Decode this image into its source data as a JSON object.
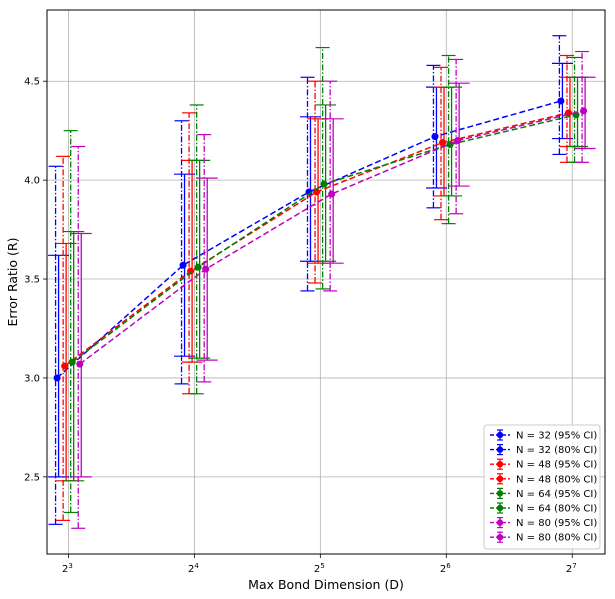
{
  "chart_data": {
    "type": "line",
    "title": "",
    "xlabel": "Max Bond Dimension (D)",
    "ylabel": "Error Ratio (R)",
    "x_scale": "log2",
    "x": [
      8,
      16,
      32,
      64,
      128
    ],
    "x_tick_labels": [
      {
        "base": "2",
        "exp": "3"
      },
      {
        "base": "2",
        "exp": "4"
      },
      {
        "base": "2",
        "exp": "5"
      },
      {
        "base": "2",
        "exp": "6"
      },
      {
        "base": "2",
        "exp": "7"
      }
    ],
    "ylim": [
      2.11,
      4.86
    ],
    "y_ticks": [
      2.5,
      3.0,
      3.5,
      4.0,
      4.5
    ],
    "y_tick_labels": [
      "2.5",
      "3.0",
      "3.5",
      "4.0",
      "4.5"
    ],
    "grid": true,
    "legend_position": "bottom-right",
    "series": [
      {
        "name": "N = 32",
        "color": "#0000ff",
        "values": [
          3.0,
          3.57,
          3.94,
          4.22,
          4.4
        ],
        "ci95_lower": [
          2.26,
          2.97,
          3.44,
          3.86,
          4.13
        ],
        "ci95_upper": [
          4.07,
          4.3,
          4.52,
          4.58,
          4.73
        ],
        "ci80_lower": [
          2.5,
          3.11,
          3.59,
          3.96,
          4.21
        ],
        "ci80_upper": [
          3.62,
          4.03,
          4.32,
          4.47,
          4.59
        ]
      },
      {
        "name": "N = 48",
        "color": "#ff0000",
        "values": [
          3.06,
          3.54,
          3.94,
          4.19,
          4.34
        ],
        "ci95_lower": [
          2.28,
          2.92,
          3.48,
          3.8,
          4.09
        ],
        "ci95_upper": [
          4.12,
          4.34,
          4.5,
          4.57,
          4.63
        ],
        "ci80_lower": [
          2.48,
          3.08,
          3.58,
          3.92,
          4.17
        ],
        "ci80_upper": [
          3.68,
          4.1,
          4.31,
          4.47,
          4.52
        ]
      },
      {
        "name": "N = 64",
        "color": "#008000",
        "values": [
          3.08,
          3.56,
          3.98,
          4.18,
          4.33
        ],
        "ci95_lower": [
          2.32,
          2.92,
          3.45,
          3.78,
          4.09
        ],
        "ci95_upper": [
          4.25,
          4.38,
          4.67,
          4.63,
          4.62
        ],
        "ci80_lower": [
          2.48,
          3.1,
          3.59,
          3.92,
          4.17
        ],
        "ci80_upper": [
          3.74,
          4.1,
          4.38,
          4.47,
          4.52
        ]
      },
      {
        "name": "N = 80",
        "color": "#bf00bf",
        "values": [
          3.07,
          3.55,
          3.93,
          4.2,
          4.35
        ],
        "ci95_lower": [
          2.24,
          2.98,
          3.44,
          3.83,
          4.09
        ],
        "ci95_upper": [
          4.17,
          4.23,
          4.5,
          4.61,
          4.65
        ],
        "ci80_lower": [
          2.5,
          3.09,
          3.58,
          3.97,
          4.16
        ],
        "ci80_upper": [
          3.73,
          4.01,
          4.31,
          4.49,
          4.52
        ]
      }
    ],
    "legend": [
      "N = 32 (95% CI)",
      "N = 32 (80% CI)",
      "N = 48 (95% CI)",
      "N = 48 (80% CI)",
      "N = 64 (95% CI)",
      "N = 64 (80% CI)",
      "N = 80 (95% CI)",
      "N = 80 (80% CI)"
    ]
  }
}
